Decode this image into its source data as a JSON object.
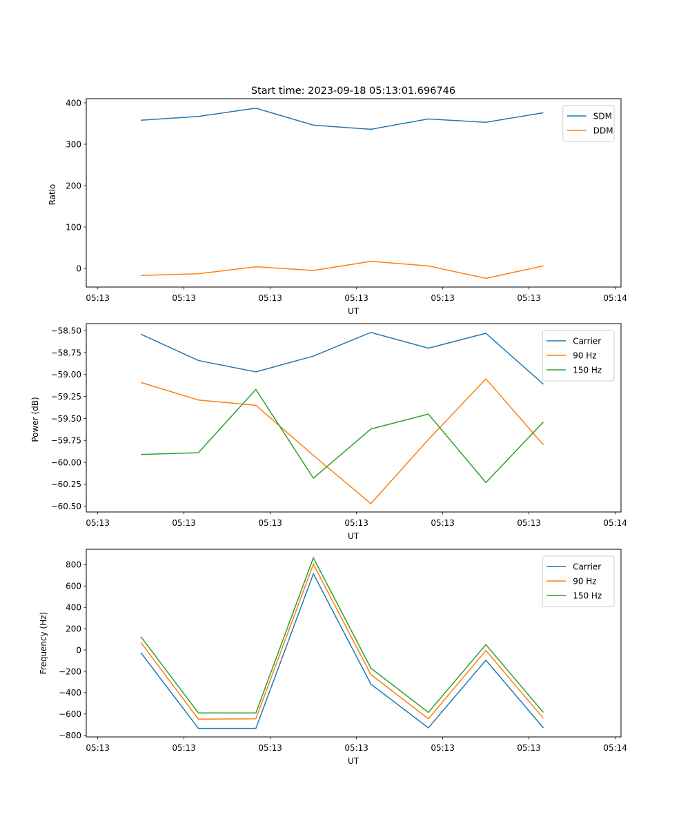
{
  "chart_data": [
    {
      "type": "line",
      "title": "Start time: 2023-09-18 05:13:01.696746",
      "xlabel": "UT",
      "ylabel": "Ratio",
      "ylim": [
        -45,
        410
      ],
      "yticks": [
        0,
        100,
        200,
        300,
        400
      ],
      "ytick_labels": [
        "0",
        "100",
        "200",
        "300",
        "400"
      ],
      "xlim": [
        -0.2,
        9.1
      ],
      "xticks": [
        0,
        1.5,
        3,
        4.5,
        6,
        7.5,
        9
      ],
      "xtick_labels": [
        "05:13",
        "05:13",
        "05:13",
        "05:13",
        "05:13",
        "05:13",
        "05:14"
      ],
      "legend_loc": "upper right",
      "x": [
        0.75,
        1.75,
        2.75,
        3.75,
        4.75,
        5.75,
        6.75,
        7.75
      ],
      "series": [
        {
          "name": "SDM",
          "color": "#1f77b4",
          "values": [
            358,
            367,
            387,
            346,
            336,
            361,
            353,
            376
          ]
        },
        {
          "name": "DDM",
          "color": "#ff7f0e",
          "values": [
            -17,
            -13,
            4,
            -5,
            17,
            6,
            -24,
            6
          ]
        }
      ]
    },
    {
      "type": "line",
      "title": "",
      "xlabel": "UT",
      "ylabel": "Power (dB)",
      "ylim": [
        -60.565,
        -58.42
      ],
      "yticks": [
        -60.5,
        -60.25,
        -60.0,
        -59.75,
        -59.5,
        -59.25,
        -59.0,
        -58.75,
        -58.5
      ],
      "ytick_labels": [
        "−60.50",
        "−60.25",
        "−60.00",
        "−59.75",
        "−59.50",
        "−59.25",
        "−59.00",
        "−58.75",
        "−58.50"
      ],
      "xlim": [
        -0.2,
        9.1
      ],
      "xticks": [
        0,
        1.5,
        3,
        4.5,
        6,
        7.5,
        9
      ],
      "xtick_labels": [
        "05:13",
        "05:13",
        "05:13",
        "05:13",
        "05:13",
        "05:13",
        "05:14"
      ],
      "legend_loc": "upper right",
      "x": [
        0.75,
        1.75,
        2.75,
        3.75,
        4.75,
        5.75,
        6.75,
        7.75
      ],
      "series": [
        {
          "name": "Carrier",
          "color": "#1f77b4",
          "values": [
            -58.54,
            -58.84,
            -58.97,
            -58.79,
            -58.52,
            -58.7,
            -58.53,
            -59.11
          ]
        },
        {
          "name": "90 Hz",
          "color": "#ff7f0e",
          "values": [
            -59.09,
            -59.29,
            -59.35,
            -59.92,
            -60.47,
            -59.74,
            -59.05,
            -59.8
          ]
        },
        {
          "name": "150 Hz",
          "color": "#2ca02c",
          "values": [
            -59.91,
            -59.89,
            -59.17,
            -60.18,
            -59.62,
            -59.45,
            -60.23,
            -59.54
          ]
        }
      ]
    },
    {
      "type": "line",
      "title": "",
      "xlabel": "UT",
      "ylabel": "Frequency (Hz)",
      "ylim": [
        -815,
        945
      ],
      "yticks": [
        -800,
        -600,
        -400,
        -200,
        0,
        200,
        400,
        600,
        800
      ],
      "ytick_labels": [
        "−800",
        "−600",
        "−400",
        "−200",
        "0",
        "200",
        "400",
        "600",
        "800"
      ],
      "xlim": [
        -0.2,
        9.1
      ],
      "xticks": [
        0,
        1.5,
        3,
        4.5,
        6,
        7.5,
        9
      ],
      "xtick_labels": [
        "05:13",
        "05:13",
        "05:13",
        "05:13",
        "05:13",
        "05:13",
        "05:14"
      ],
      "legend_loc": "upper right",
      "x": [
        0.75,
        1.75,
        2.75,
        3.75,
        4.75,
        5.75,
        6.75,
        7.75
      ],
      "series": [
        {
          "name": "Carrier",
          "color": "#1f77b4",
          "values": [
            -25,
            -735,
            -735,
            715,
            -320,
            -730,
            -95,
            -730
          ]
        },
        {
          "name": "90 Hz",
          "color": "#ff7f0e",
          "values": [
            70,
            -648,
            -645,
            805,
            -230,
            -645,
            -5,
            -640
          ]
        },
        {
          "name": "150 Hz",
          "color": "#2ca02c",
          "values": [
            125,
            -590,
            -590,
            865,
            -170,
            -585,
            50,
            -585
          ]
        }
      ]
    }
  ]
}
